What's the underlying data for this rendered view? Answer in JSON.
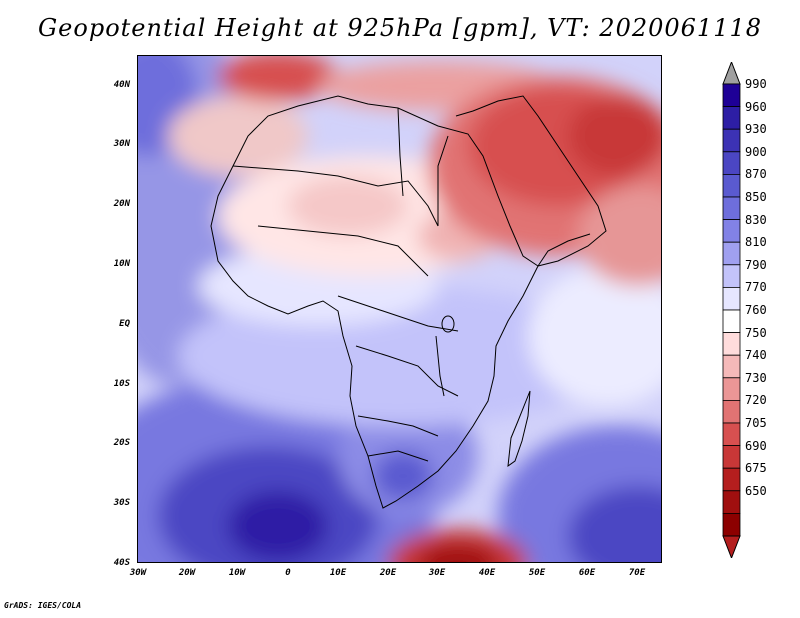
{
  "title": "Geopotential Height at 925hPa [gpm], VT: 2020061118",
  "footer": "GrADS: IGES/COLA",
  "map": {
    "lat_labels": [
      "40N",
      "30N",
      "20N",
      "10N",
      "EQ",
      "10S",
      "20S",
      "30S",
      "40S"
    ],
    "lon_labels": [
      "30W",
      "20W",
      "10W",
      "0",
      "10E",
      "20E",
      "30E",
      "40E",
      "50E",
      "60E",
      "70E"
    ]
  },
  "colorbar": {
    "levels": [
      "990",
      "960",
      "930",
      "900",
      "870",
      "850",
      "830",
      "810",
      "790",
      "770",
      "760",
      "750",
      "740",
      "730",
      "720",
      "705",
      "690",
      "675",
      "650"
    ],
    "colors": [
      "#1e0096",
      "#2d1ea5",
      "#3c32b4",
      "#4b46c3",
      "#5a5ad0",
      "#6e6edc",
      "#8282e6",
      "#a0a0f0",
      "#c3c3fa",
      "#e6e6ff",
      "#ffffff",
      "#ffdcdc",
      "#f5b9b9",
      "#eb9696",
      "#e17373",
      "#d75050",
      "#c83737",
      "#b41e1e",
      "#a00f0f",
      "#8c0000"
    ],
    "over_color": "#a0a0a0",
    "under_color": "#b41e1e"
  }
}
